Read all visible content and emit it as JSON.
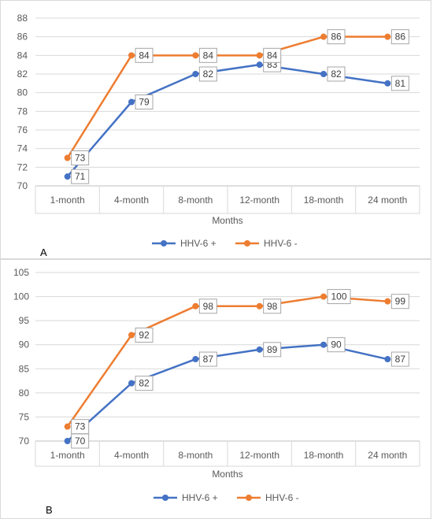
{
  "chart_data": [
    {
      "panel_label": "A",
      "type": "line",
      "categories": [
        "1-month",
        "4-month",
        "8-month",
        "12-month",
        "18-month",
        "24 month"
      ],
      "xlabel": "Months",
      "ylabel": "",
      "ylim": [
        70,
        88
      ],
      "ytick_step": 2,
      "grid": true,
      "legend_position": "bottom",
      "series": [
        {
          "name": "HHV-6 +",
          "color": "#4472c4",
          "values": [
            71,
            79,
            82,
            83,
            82,
            81
          ]
        },
        {
          "name": "HHV-6 -",
          "color": "#ed7d31",
          "values": [
            73,
            84,
            84,
            84,
            86,
            86
          ]
        }
      ]
    },
    {
      "panel_label": "B",
      "type": "line",
      "categories": [
        "1-month",
        "4-month",
        "8-month",
        "12-month",
        "18-month",
        "24 month"
      ],
      "xlabel": "Months",
      "ylabel": "",
      "ylim": [
        70,
        105
      ],
      "ytick_step": 5,
      "grid": true,
      "legend_position": "bottom",
      "series": [
        {
          "name": "HHV-6 +",
          "color": "#4472c4",
          "values": [
            70,
            82,
            87,
            89,
            90,
            87
          ]
        },
        {
          "name": "HHV-6 -",
          "color": "#ed7d31",
          "values": [
            73,
            92,
            98,
            98,
            100,
            99
          ]
        }
      ]
    }
  ]
}
